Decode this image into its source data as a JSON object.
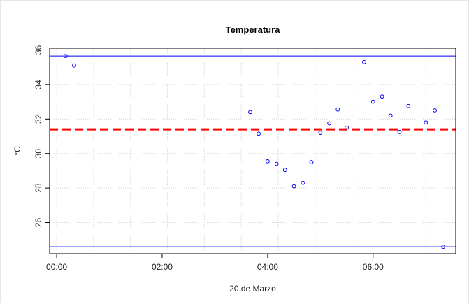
{
  "chart_data": {
    "type": "scatter",
    "title": "Temperatura",
    "xlabel": "20 de Marzo",
    "ylabel": "°C",
    "x_unit": "hours after 00:00, 20 de Marzo",
    "xlim": [
      "-00:08",
      "07:34"
    ],
    "ylim": [
      24.2,
      36.1
    ],
    "x_ticks": [
      {
        "label": "00:00",
        "value": 0
      },
      {
        "label": "02:00",
        "value": 2
      },
      {
        "label": "04:00",
        "value": 4
      },
      {
        "label": "06:00",
        "value": 6
      }
    ],
    "y_ticks": [
      26,
      28,
      30,
      32,
      34,
      36
    ],
    "grid": true,
    "x_gridlines": [
      0,
      0.7,
      1.4,
      2.1,
      2.8,
      3.5,
      4.2,
      4.9,
      5.6,
      6.3,
      7.0
    ],
    "points": [
      {
        "x": 0.17,
        "y": 35.65
      },
      {
        "x": 0.33,
        "y": 35.1
      },
      {
        "x": 3.67,
        "y": 32.4
      },
      {
        "x": 3.83,
        "y": 31.15
      },
      {
        "x": 4.0,
        "y": 29.55
      },
      {
        "x": 4.17,
        "y": 29.4
      },
      {
        "x": 4.33,
        "y": 29.05
      },
      {
        "x": 4.5,
        "y": 28.1
      },
      {
        "x": 4.67,
        "y": 28.3
      },
      {
        "x": 4.83,
        "y": 29.5
      },
      {
        "x": 5.0,
        "y": 31.2
      },
      {
        "x": 5.17,
        "y": 31.75
      },
      {
        "x": 5.33,
        "y": 32.55
      },
      {
        "x": 5.5,
        "y": 31.5
      },
      {
        "x": 5.83,
        "y": 35.3
      },
      {
        "x": 6.0,
        "y": 33.0
      },
      {
        "x": 6.17,
        "y": 33.3
      },
      {
        "x": 6.33,
        "y": 32.2
      },
      {
        "x": 6.5,
        "y": 31.25
      },
      {
        "x": 6.67,
        "y": 32.75
      },
      {
        "x": 7.0,
        "y": 31.8
      },
      {
        "x": 7.17,
        "y": 32.5
      },
      {
        "x": 7.33,
        "y": 24.6
      }
    ],
    "reference_lines": {
      "upper_limit": 35.65,
      "mean": 31.4,
      "lower_limit": 24.6
    },
    "colors": {
      "points": "#0000ff",
      "limits": "#0000ff",
      "mean": "#ff0000",
      "grid": "#d3d3d3"
    }
  }
}
